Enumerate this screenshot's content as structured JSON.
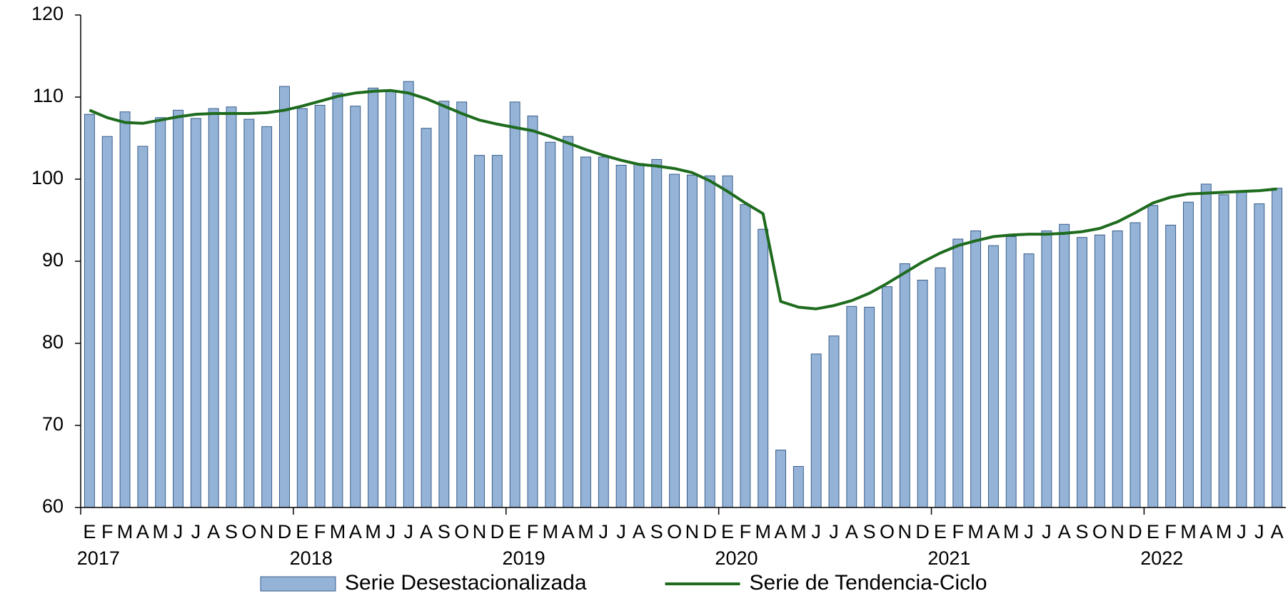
{
  "chart_data": {
    "type": "combo",
    "categories": [
      "E",
      "F",
      "M",
      "A",
      "M",
      "J",
      "J",
      "A",
      "S",
      "O",
      "N",
      "D",
      "E",
      "F",
      "M",
      "A",
      "M",
      "J",
      "J",
      "A",
      "S",
      "O",
      "N",
      "D",
      "E",
      "F",
      "M",
      "A",
      "M",
      "J",
      "J",
      "A",
      "S",
      "O",
      "N",
      "D",
      "E",
      "F",
      "M",
      "A",
      "M",
      "J",
      "J",
      "A",
      "S",
      "O",
      "N",
      "D",
      "E",
      "F",
      "M",
      "A",
      "M",
      "J",
      "J",
      "A",
      "S",
      "O",
      "N",
      "D",
      "E",
      "F",
      "M",
      "A",
      "M",
      "J",
      "J",
      "A"
    ],
    "years": [
      "2017",
      "2018",
      "2019",
      "2020",
      "2021",
      "2022"
    ],
    "series": [
      {
        "name": "Serie Desestacionalizada",
        "type": "bar",
        "color": "#95b3d7",
        "edge": "#385d8a",
        "values": [
          107.9,
          105.2,
          108.2,
          104.0,
          107.5,
          108.4,
          107.4,
          108.6,
          108.8,
          107.3,
          106.4,
          111.3,
          108.6,
          109.0,
          110.5,
          108.9,
          111.1,
          110.8,
          111.9,
          106.2,
          109.5,
          109.4,
          102.9,
          102.9,
          109.4,
          107.7,
          104.5,
          105.2,
          102.7,
          102.7,
          101.7,
          101.9,
          102.4,
          100.6,
          100.5,
          100.4,
          100.4,
          96.9,
          93.9,
          67.0,
          65.0,
          78.7,
          80.9,
          84.5,
          84.4,
          86.9,
          89.7,
          87.7,
          89.2,
          92.7,
          93.7,
          91.9,
          93.0,
          90.9,
          93.7,
          94.5,
          92.9,
          93.2,
          93.7,
          94.7,
          96.8,
          94.4,
          97.2,
          99.4,
          98.1,
          98.4,
          97.0,
          98.9
        ]
      },
      {
        "name": "Serie de Tendencia-Ciclo",
        "type": "line",
        "color": "#1e6b1e",
        "values": [
          108.4,
          107.5,
          106.9,
          106.8,
          107.2,
          107.6,
          107.9,
          108.0,
          108.0,
          108.0,
          108.1,
          108.4,
          108.9,
          109.5,
          110.1,
          110.5,
          110.7,
          110.8,
          110.5,
          109.8,
          108.9,
          108.0,
          107.2,
          106.7,
          106.3,
          105.9,
          105.2,
          104.4,
          103.6,
          102.9,
          102.3,
          101.8,
          101.6,
          101.3,
          100.8,
          99.8,
          98.5,
          97.1,
          95.8,
          85.1,
          84.4,
          84.2,
          84.6,
          85.2,
          86.1,
          87.3,
          88.6,
          89.9,
          91.0,
          91.9,
          92.5,
          93.0,
          93.2,
          93.3,
          93.3,
          93.4,
          93.6,
          94.0,
          94.8,
          95.9,
          97.1,
          97.8,
          98.2,
          98.3,
          98.4,
          98.5,
          98.6,
          98.8
        ]
      }
    ],
    "ylim": [
      60,
      120
    ],
    "yticks": [
      60,
      70,
      80,
      90,
      100,
      110,
      120
    ],
    "grid": false
  }
}
